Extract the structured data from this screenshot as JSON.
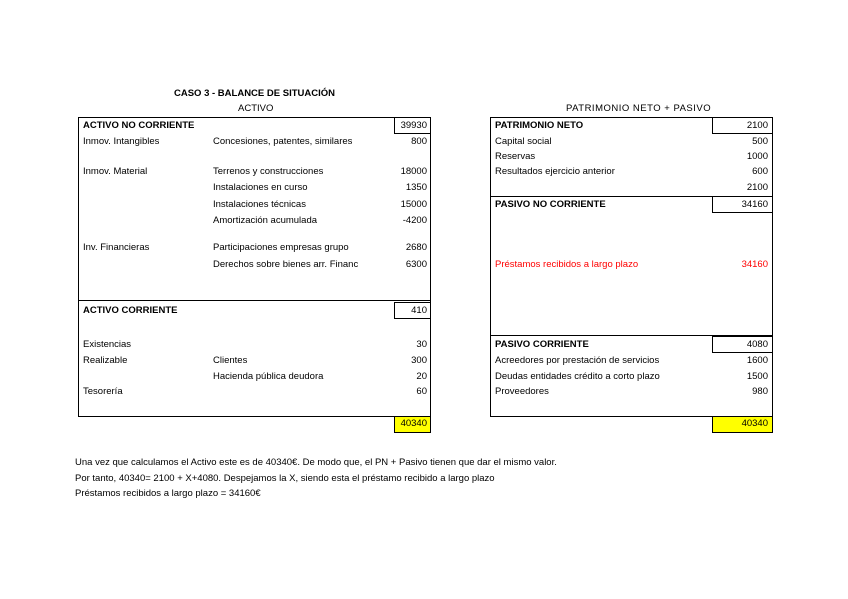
{
  "title": "CASO 3 - BALANCE DE SITUACIÓN",
  "activo": {
    "heading": "ACTIVO",
    "no_corriente": {
      "label": "ACTIVO NO CORRIENTE",
      "total": "39930"
    },
    "rows": [
      {
        "group": "Inmov. Intangibles",
        "item": "Concesiones, patentes, similares",
        "value": "800"
      },
      {
        "group": "Inmov. Material",
        "item": "Terrenos y construcciones",
        "value": "18000"
      },
      {
        "group": "",
        "item": "Instalaciones en curso",
        "value": "1350"
      },
      {
        "group": "",
        "item": "Instalaciones técnicas",
        "value": "15000"
      },
      {
        "group": "",
        "item": "Amortización acumulada",
        "value": "-4200"
      },
      {
        "group": "Inv. Financieras",
        "item": "Participaciones empresas grupo",
        "value": "2680"
      },
      {
        "group": "",
        "item": "Derechos sobre bienes arr. Financ",
        "value": "6300"
      }
    ],
    "corriente": {
      "label": "ACTIVO CORRIENTE",
      "total": "410"
    },
    "rows_corriente": [
      {
        "group": "Existencias",
        "item": "",
        "value": "30"
      },
      {
        "group": "Realizable",
        "item": "Clientes",
        "value": "300"
      },
      {
        "group": "",
        "item": "Hacienda pública deudora",
        "value": "20"
      },
      {
        "group": "Tesorería",
        "item": "",
        "value": "60"
      }
    ],
    "grand_total": "40340"
  },
  "pasivo": {
    "heading": "PATRIMONIO NETO + PASIVO",
    "pn": {
      "label": "PATRIMONIO NETO",
      "total": "2100"
    },
    "pn_rows": [
      {
        "item": "Capital social",
        "value": "500"
      },
      {
        "item": "Reservas",
        "value": "1000"
      },
      {
        "item": "Resultados ejercicio anterior",
        "value": "600"
      },
      {
        "item": "",
        "value": "2100"
      }
    ],
    "no_corriente": {
      "label": "PASIVO NO CORRIENTE",
      "total": "34160"
    },
    "nc_row": {
      "item": "Préstamos recibidos a largo plazo",
      "value": "34160"
    },
    "corriente": {
      "label": "PASIVO CORRIENTE",
      "total": "4080"
    },
    "c_rows": [
      {
        "item": "Acreedores por prestación de servicios",
        "value": "1600"
      },
      {
        "item": "Deudas entidades crédito a corto plazo",
        "value": "1500"
      },
      {
        "item": "Proveedores",
        "value": "980"
      }
    ],
    "grand_total": "40340"
  },
  "notes": [
    "Una vez que calculamos el Activo este es de 40340€. De modo que, el PN + Pasivo tienen que dar el mismo valor.",
    "Por tanto, 40340= 2100 + X+4080. Despejamos la X, siendo esta el préstamo recibido a largo plazo",
    "Préstamos recibidos a largo plazo = 34160€"
  ],
  "colors": {
    "highlight": "#ffff00",
    "red_text": "#ff0000"
  }
}
